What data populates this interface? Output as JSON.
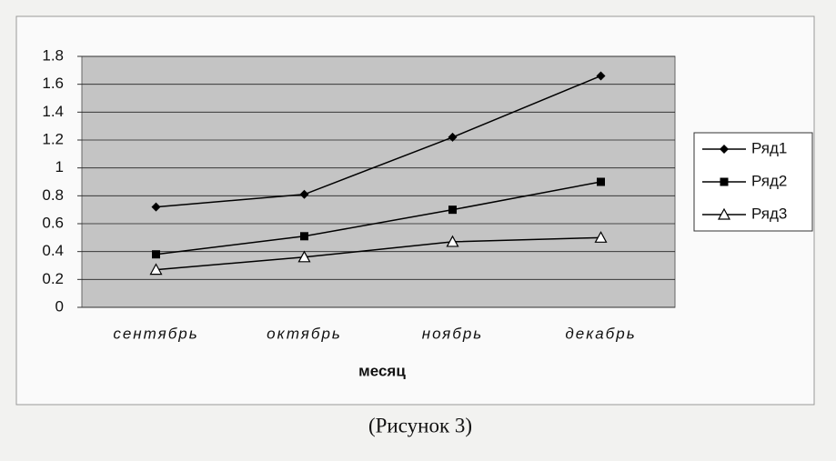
{
  "chart_data": {
    "type": "line",
    "categories": [
      "сентябрь",
      "октябрь",
      "ноябрь",
      "декабрь"
    ],
    "x_label": "месяц",
    "caption": "(Рисунок 3)",
    "series": [
      {
        "name": "Ряд1",
        "color": "#000000",
        "marker": "diamond",
        "values": [
          0.72,
          0.81,
          1.22,
          1.66
        ]
      },
      {
        "name": "Ряд2",
        "color": "#000000",
        "marker": "square",
        "values": [
          0.38,
          0.51,
          0.7,
          0.9
        ]
      },
      {
        "name": "Ряд3",
        "color": "#000000",
        "marker": "triangle-open",
        "values": [
          0.27,
          0.36,
          0.47,
          0.5
        ]
      }
    ],
    "ylim": [
      0,
      1.8
    ],
    "yticks": [
      0,
      0.2,
      0.4,
      0.6,
      0.8,
      1,
      1.2,
      1.4,
      1.6,
      1.8
    ],
    "grid": true,
    "legend": "right",
    "plot_background": "#c4c4c4"
  }
}
